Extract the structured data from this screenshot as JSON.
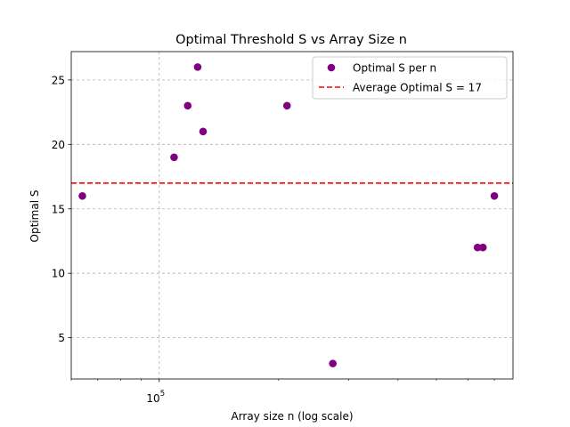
{
  "chart_data": {
    "type": "scatter",
    "title": "Optimal Threshold S vs Array Size n",
    "xlabel": "Array size n (log scale)",
    "ylabel": "Optimal S",
    "x_scale": "log",
    "xlim": [
      60000,
      780000
    ],
    "ylim": [
      1.8,
      27.2
    ],
    "x_major_ticks": [
      {
        "value": 100000,
        "base": "10",
        "exp": "5"
      }
    ],
    "x_minor_ticks": [
      60000,
      70000,
      80000,
      90000,
      200000,
      300000,
      400000,
      500000,
      600000,
      700000
    ],
    "y_ticks": [
      5,
      10,
      15,
      20,
      25
    ],
    "grid": true,
    "legend_position": "top-right",
    "series": [
      {
        "name": "Optimal S per n",
        "kind": "scatter",
        "color": "#800080",
        "points": [
          {
            "x": 64000,
            "y": 16
          },
          {
            "x": 109000,
            "y": 19
          },
          {
            "x": 118000,
            "y": 23
          },
          {
            "x": 125000,
            "y": 26
          },
          {
            "x": 129000,
            "y": 21
          },
          {
            "x": 210000,
            "y": 23
          },
          {
            "x": 274000,
            "y": 3
          },
          {
            "x": 635000,
            "y": 12
          },
          {
            "x": 655000,
            "y": 12
          },
          {
            "x": 700000,
            "y": 16
          }
        ]
      },
      {
        "name": "Average Optimal S = 17",
        "kind": "hline",
        "color": "#ff0000",
        "y": 17
      }
    ]
  }
}
